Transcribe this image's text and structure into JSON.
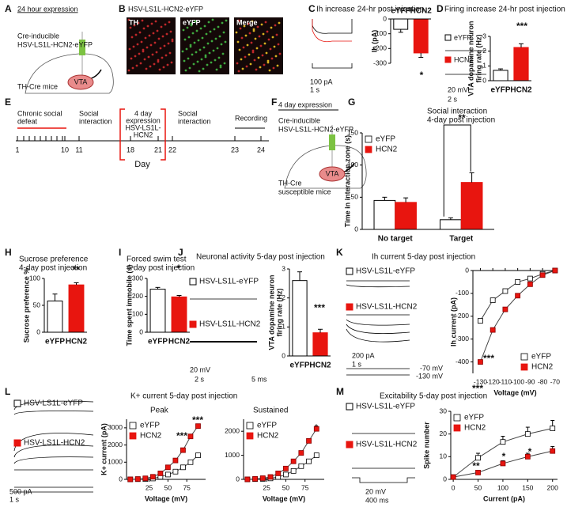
{
  "chart_data": [
    {
      "type": "bar",
      "title": "Ih increase 24-hr post injection",
      "ylabel": "Ih (pA)",
      "categories": [
        "eYFP",
        "HCN2"
      ],
      "values": [
        -70,
        -230
      ],
      "errors": [
        20,
        30
      ],
      "colors": [
        "#ffffff",
        "#e8150f"
      ],
      "ylim": [
        -300,
        0
      ],
      "yticks": [
        -300,
        -200,
        -100,
        0
      ],
      "annotations": [
        "*"
      ]
    },
    {
      "type": "bar",
      "title": "Firing increase 24-hr post injection",
      "ylabel": [
        "VTA dopamine neuron",
        "firing rate (Hz)"
      ],
      "categories": [
        "eYFP",
        "HCN2"
      ],
      "values": [
        0.7,
        2.25
      ],
      "errors": [
        0.1,
        0.25
      ],
      "colors": [
        "#ffffff",
        "#e8150f"
      ],
      "ylim": [
        0,
        3
      ],
      "yticks": [
        0,
        1,
        2,
        3
      ],
      "annotations": [
        "***"
      ]
    },
    {
      "type": "bar",
      "title": [
        "Social interaction",
        "4-day post injection"
      ],
      "ylabel": "Time in interaction zone (s)",
      "categories": [
        "No target",
        "Target"
      ],
      "series": [
        {
          "name": "eYFP",
          "color": "#ffffff",
          "values": [
            45,
            15
          ],
          "errors": [
            5,
            3
          ]
        },
        {
          "name": "HCN2",
          "color": "#e8150f",
          "values": [
            42,
            73
          ],
          "errors": [
            7,
            15
          ]
        }
      ],
      "ylim": [
        0,
        150
      ],
      "yticks": [
        0,
        50,
        100,
        150
      ],
      "legend": "upper left",
      "annotations": [
        "**"
      ]
    },
    {
      "type": "bar",
      "title": [
        "Sucrose preference",
        "4-day post injection"
      ],
      "ylabel": "Sucrose preference %",
      "categories": [
        "eYFP",
        "HCN2"
      ],
      "values": [
        58,
        88
      ],
      "errors": [
        13,
        4
      ],
      "colors": [
        "#ffffff",
        "#e8150f"
      ],
      "ylim": [
        0,
        100
      ],
      "yticks": [
        0,
        50,
        100
      ],
      "annotations": [
        "**"
      ]
    },
    {
      "type": "bar",
      "title": [
        "Forced swim test",
        "4-day post injection"
      ],
      "ylabel": "Time spent immobile (s)",
      "categories": [
        "eYFP",
        "HCN2"
      ],
      "values": [
        240,
        197
      ],
      "errors": [
        10,
        8
      ],
      "colors": [
        "#ffffff",
        "#e8150f"
      ],
      "ylim": [
        0,
        300
      ],
      "yticks": [
        0,
        100,
        200,
        300
      ],
      "annotations": [
        "*"
      ]
    },
    {
      "type": "bar",
      "title": "Neuronal activity 5-day post injection",
      "ylabel": [
        "VTA dopamine neuron",
        "firing rate (Hz)"
      ],
      "categories": [
        "eYFP",
        "HCN2"
      ],
      "values": [
        2.6,
        0.8
      ],
      "errors": [
        0.3,
        0.12
      ],
      "colors": [
        "#ffffff",
        "#e8150f"
      ],
      "ylim": [
        0,
        3
      ],
      "yticks": [
        0,
        1,
        2,
        3
      ],
      "annotations": [
        "***"
      ]
    },
    {
      "type": "line",
      "title": "Ih current 5-day post injection",
      "ylabel": "Ih current (pA)",
      "xlabel": "Voltage (mV)",
      "x": [
        -130,
        -120,
        -110,
        -100,
        -90,
        -80,
        -70
      ],
      "series": [
        {
          "name": "eYFP",
          "color": "#ffffff",
          "values": [
            -220,
            -130,
            -90,
            -50,
            -35,
            -15,
            0
          ]
        },
        {
          "name": "HCN2",
          "color": "#e8150f",
          "values": [
            -400,
            -260,
            -170,
            -110,
            -60,
            -20,
            0
          ]
        }
      ],
      "xlim": [
        -136,
        -68
      ],
      "xticks": [
        -130,
        -120,
        -110,
        -100,
        -90,
        -80,
        -70
      ],
      "ylim": [
        -450,
        0
      ],
      "yticks": [
        -400,
        -300,
        -200,
        -100,
        0
      ],
      "legend": "lower right",
      "annotations": [
        "***",
        "***"
      ]
    },
    {
      "type": "line",
      "title": "Peak",
      "ylabel": "K+ current (pA)",
      "xlabel": "Voltage (mV)",
      "x": [
        0,
        10,
        20,
        30,
        40,
        50,
        60,
        70,
        80,
        90
      ],
      "series": [
        {
          "name": "eYFP",
          "color": "#ffffff",
          "values": [
            0,
            10,
            20,
            50,
            150,
            280,
            450,
            700,
            1000,
            1400
          ]
        },
        {
          "name": "HCN2",
          "color": "#e8150f",
          "values": [
            0,
            20,
            60,
            150,
            350,
            700,
            1100,
            1700,
            2500,
            3100
          ]
        }
      ],
      "xlim": [
        -5,
        100
      ],
      "xticks": [
        25,
        50,
        75
      ],
      "ylim": [
        0,
        3500
      ],
      "yticks": [
        0,
        1000,
        2000,
        3000
      ],
      "legend": "upper left",
      "annotations": [
        "***",
        "***"
      ]
    },
    {
      "type": "line",
      "title": "Sustained",
      "xlabel": "Voltage (mV)",
      "x": [
        0,
        10,
        20,
        30,
        40,
        50,
        60,
        70,
        80,
        90
      ],
      "series": [
        {
          "name": "eYFP",
          "color": "#ffffff",
          "values": [
            0,
            10,
            20,
            40,
            100,
            200,
            350,
            550,
            750,
            1000
          ]
        },
        {
          "name": "HCN2",
          "color": "#e8150f",
          "values": [
            0,
            20,
            50,
            100,
            250,
            450,
            750,
            1100,
            1600,
            2100
          ]
        }
      ],
      "xlim": [
        -5,
        100
      ],
      "xticks": [
        25,
        50,
        75
      ],
      "ylim": [
        0,
        2500
      ],
      "yticks": [
        0,
        1000,
        2000
      ],
      "legend": "upper left",
      "annotations": [
        "*"
      ]
    },
    {
      "type": "line",
      "title": "Excitability 5-day post injection",
      "ylabel": "Spike number",
      "xlabel": "Current (pA)",
      "x": [
        0,
        50,
        100,
        150,
        200
      ],
      "series": [
        {
          "name": "eYFP",
          "color": "#ffffff",
          "values": [
            1,
            9.5,
            16.5,
            20,
            22.5
          ],
          "errors": [
            0.5,
            2,
            2.5,
            3,
            3.5
          ]
        },
        {
          "name": "HCN2",
          "color": "#e8150f",
          "values": [
            1,
            3,
            7,
            10,
            12.5
          ],
          "errors": [
            0.3,
            0.8,
            1.2,
            1.5,
            2
          ]
        }
      ],
      "xlim": [
        -5,
        210
      ],
      "xticks": [
        0,
        50,
        100,
        150,
        200
      ],
      "ylim": [
        0,
        30
      ],
      "yticks": [
        0,
        10,
        20,
        30
      ],
      "legend": "upper left",
      "annotations": [
        "**",
        "*",
        "*"
      ]
    }
  ],
  "labels": {
    "panel_letters": [
      "A",
      "B",
      "C",
      "D",
      "E",
      "F",
      "G",
      "H",
      "I",
      "J",
      "K",
      "L",
      "M"
    ],
    "a": {
      "expression": "24 hour expression",
      "construct": [
        "Cre-inducible",
        "HSV-LS1L-HCN2-eYFP"
      ],
      "mice": "TH-Cre mice",
      "vta": "VTA"
    },
    "b": {
      "title": "HSV-LS1L-HCN2-eYFP",
      "images": [
        "TH",
        "eYFP",
        "Merge"
      ]
    },
    "c": {
      "scale": [
        "100 pA",
        "1 s"
      ]
    },
    "d": {
      "traces": [
        "eYFP",
        "HCN2"
      ],
      "scale": [
        "20 mV",
        "2 s"
      ]
    },
    "e": {
      "defeat": [
        "Chronic social",
        "defeat"
      ],
      "interaction1": [
        "Social",
        "interaction"
      ],
      "expression": [
        "4 day",
        "expression",
        "HSV-LS1L-",
        "HCN2"
      ],
      "interaction2": [
        "Social",
        "interaction"
      ],
      "recording": "Recording",
      "days": [
        1,
        10,
        11,
        18,
        21,
        22,
        23,
        24
      ],
      "axis": "Day"
    },
    "f": {
      "expression": "4 day expression",
      "construct": [
        "Cre-inducible",
        "HSV-LS1L-HCN2-eYFP"
      ],
      "mice": [
        "TH-Cre",
        "susceptible mice"
      ],
      "vta": "VTA"
    },
    "j": {
      "traces": [
        "HSV-LS1L-eYFP",
        "HSV-LS1L-HCN2"
      ],
      "scale": [
        "20 mV",
        "2 s",
        "5 ms"
      ]
    },
    "k": {
      "traces": [
        "HSV-LS1L-eYFP",
        "HSV-LS1L-HCN2"
      ],
      "scale": [
        "200 pA",
        "1 s",
        "-70 mV",
        "-130 mV"
      ]
    },
    "l": {
      "title": "K+ current 5-day post injection",
      "traces": [
        "HSV-LS1L-eYFP",
        "HSV-LS1L-HCN2"
      ],
      "scale": [
        "500 pA",
        "1 s"
      ]
    },
    "m": {
      "traces": [
        "HSV-LS1L-eYFP",
        "HSV-LS1L-HCN2"
      ],
      "scale": [
        "20 mV",
        "400 ms"
      ]
    }
  }
}
